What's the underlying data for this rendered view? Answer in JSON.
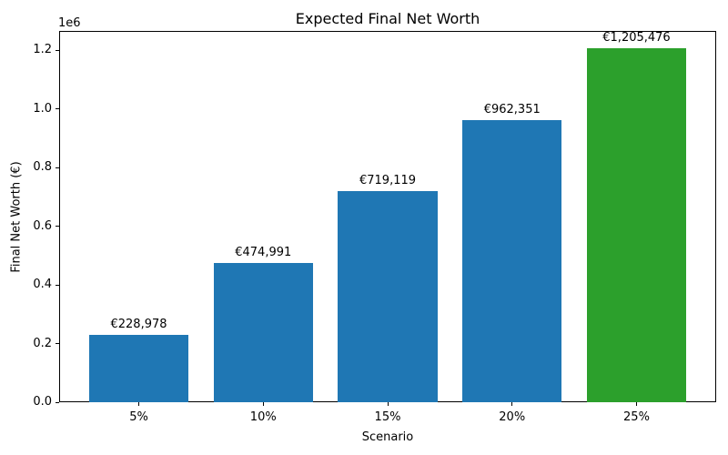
{
  "chart_data": {
    "type": "bar",
    "title": "Expected Final Net Worth",
    "xlabel": "Scenario",
    "ylabel": "Final Net Worth (€)",
    "offset_text": "1e6",
    "categories": [
      "5%",
      "10%",
      "15%",
      "20%",
      "25%"
    ],
    "values": [
      228978,
      474991,
      719119,
      962351,
      1205476
    ],
    "bar_labels": [
      "€228,978",
      "€474,991",
      "€719,119",
      "€962,351",
      "€1,205,476"
    ],
    "bar_colors": [
      "#1f77b4",
      "#1f77b4",
      "#1f77b4",
      "#1f77b4",
      "#2ca02c"
    ],
    "y_tick_labels": [
      "0.0",
      "0.2",
      "0.4",
      "0.6",
      "0.8",
      "1.0",
      "1.2"
    ],
    "y_tick_values": [
      0,
      200000,
      400000,
      600000,
      800000,
      1000000,
      1200000
    ],
    "ylim": [
      0,
      1265750
    ],
    "bar_width_fraction": 0.8,
    "grid": false,
    "legend": null
  }
}
